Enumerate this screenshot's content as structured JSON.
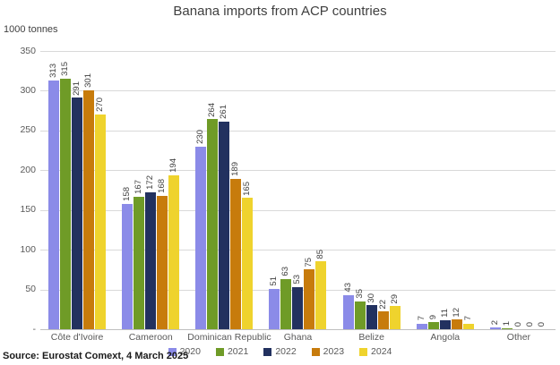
{
  "title": "Banana imports from ACP countries",
  "unit_label": "1000 tonnes",
  "source": "Source: Eurostat Comext, 4 March 2025",
  "chart_data": {
    "type": "bar",
    "title": "Banana imports from ACP countries",
    "xlabel": "",
    "ylabel": "1000 tonnes",
    "ylim": [
      0,
      350
    ],
    "yticks": [
      0,
      50,
      100,
      150,
      200,
      250,
      300,
      350
    ],
    "ytick_labels": [
      "-",
      "50",
      "100",
      "150",
      "200",
      "250",
      "300",
      "350"
    ],
    "grid": true,
    "legend_position": "bottom",
    "data_labels": "rotated",
    "categories": [
      "Côte d'Ivoire",
      "Cameroon",
      "Dominican Republic",
      "Ghana",
      "Belize",
      "Angola",
      "Other"
    ],
    "series": [
      {
        "name": "2020",
        "color": "#8b8be8",
        "values": [
          313,
          158,
          230,
          51,
          43,
          7,
          2
        ]
      },
      {
        "name": "2021",
        "color": "#6f9b27",
        "values": [
          315,
          167,
          264,
          63,
          35,
          9,
          1
        ]
      },
      {
        "name": "2022",
        "color": "#22315f",
        "values": [
          291,
          172,
          261,
          53,
          30,
          11,
          0
        ]
      },
      {
        "name": "2023",
        "color": "#c77b0c",
        "values": [
          301,
          168,
          189,
          75,
          22,
          12,
          0
        ]
      },
      {
        "name": "2024",
        "color": "#efd32d",
        "values": [
          270,
          194,
          165,
          85,
          29,
          7,
          0
        ]
      }
    ]
  }
}
